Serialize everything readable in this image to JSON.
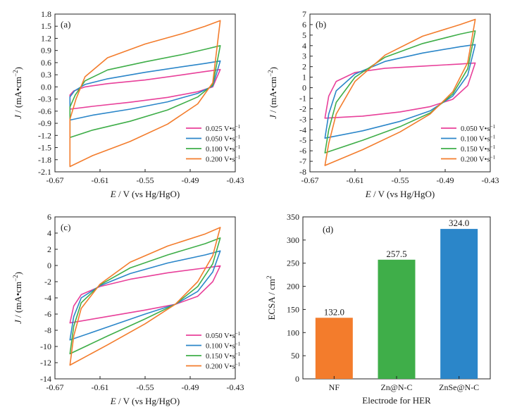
{
  "chart_data": [
    {
      "type": "line",
      "panel_label": "(a)",
      "xlabel_italic": "E",
      "xlabel": " / V (vs Hg/HgO)",
      "ylabel_italic": "J",
      "ylabel": " / (mA·cm",
      "ylabel_sup": "−2",
      "ylabel_end": ")",
      "xlim": [
        -0.67,
        -0.43
      ],
      "ylim": [
        -2.1,
        1.8
      ],
      "xticks": [
        "-0.67",
        "-0.61",
        "-0.55",
        "-0.49",
        "-0.43"
      ],
      "xtick_values": [
        -0.67,
        -0.61,
        -0.55,
        -0.49,
        -0.43
      ],
      "yticks": [
        "-2.1",
        "-1.8",
        "-1.5",
        "-1.2",
        "-0.9",
        "-0.6",
        "-0.3",
        "0.0",
        "0.3",
        "0.6",
        "0.9",
        "1.2",
        "1.5",
        "1.8"
      ],
      "ytick_values": [
        -2.1,
        -1.8,
        -1.5,
        -1.2,
        -0.9,
        -0.6,
        -0.3,
        0.0,
        0.3,
        0.6,
        0.9,
        1.2,
        1.5,
        1.8
      ],
      "legend_position": "lower-right",
      "x_min": -0.65,
      "x_max": -0.45,
      "series": [
        {
          "name": "0.025 V·s",
          "color": "#e8409a",
          "top": [
            [
              -0.65,
              -0.2
            ],
            [
              -0.645,
              -0.1
            ],
            [
              -0.63,
              0.0
            ],
            [
              -0.6,
              0.08
            ],
            [
              -0.55,
              0.17
            ],
            [
              -0.5,
              0.3
            ],
            [
              -0.47,
              0.38
            ],
            [
              -0.45,
              0.43
            ]
          ],
          "bottom": [
            [
              -0.65,
              -0.55
            ],
            [
              -0.62,
              -0.48
            ],
            [
              -0.57,
              -0.38
            ],
            [
              -0.52,
              -0.26
            ],
            [
              -0.48,
              -0.12
            ],
            [
              -0.46,
              0.0
            ],
            [
              -0.45,
              0.43
            ]
          ]
        },
        {
          "name": "0.050 V·s",
          "color": "#2b86c9",
          "top": [
            [
              -0.65,
              -0.25
            ],
            [
              -0.644,
              -0.1
            ],
            [
              -0.63,
              0.06
            ],
            [
              -0.6,
              0.2
            ],
            [
              -0.55,
              0.36
            ],
            [
              -0.5,
              0.5
            ],
            [
              -0.47,
              0.58
            ],
            [
              -0.45,
              0.64
            ]
          ],
          "bottom": [
            [
              -0.65,
              -0.82
            ],
            [
              -0.62,
              -0.7
            ],
            [
              -0.57,
              -0.55
            ],
            [
              -0.52,
              -0.37
            ],
            [
              -0.48,
              -0.16
            ],
            [
              -0.46,
              0.02
            ],
            [
              -0.45,
              0.64
            ]
          ]
        },
        {
          "name": "0.100 V·s",
          "color": "#3fae49",
          "top": [
            [
              -0.65,
              -0.5
            ],
            [
              -0.643,
              -0.2
            ],
            [
              -0.63,
              0.15
            ],
            [
              -0.6,
              0.42
            ],
            [
              -0.55,
              0.62
            ],
            [
              -0.5,
              0.8
            ],
            [
              -0.47,
              0.93
            ],
            [
              -0.45,
              1.02
            ]
          ],
          "bottom": [
            [
              -0.65,
              -1.25
            ],
            [
              -0.62,
              -1.07
            ],
            [
              -0.57,
              -0.85
            ],
            [
              -0.52,
              -0.57
            ],
            [
              -0.48,
              -0.25
            ],
            [
              -0.46,
              0.05
            ],
            [
              -0.45,
              1.02
            ]
          ]
        },
        {
          "name": "0.200 V·s",
          "color": "#f37c2c",
          "top": [
            [
              -0.65,
              -0.8
            ],
            [
              -0.642,
              -0.3
            ],
            [
              -0.63,
              0.25
            ],
            [
              -0.6,
              0.72
            ],
            [
              -0.55,
              1.06
            ],
            [
              -0.5,
              1.32
            ],
            [
              -0.47,
              1.5
            ],
            [
              -0.45,
              1.64
            ]
          ],
          "bottom": [
            [
              -0.65,
              -1.97
            ],
            [
              -0.62,
              -1.7
            ],
            [
              -0.57,
              -1.35
            ],
            [
              -0.52,
              -0.92
            ],
            [
              -0.48,
              -0.42
            ],
            [
              -0.46,
              0.1
            ],
            [
              -0.45,
              1.64
            ]
          ]
        }
      ]
    },
    {
      "type": "line",
      "panel_label": "(b)",
      "xlabel_italic": "E",
      "xlabel": " / V (vs Hg/HgO)",
      "ylabel_italic": "J",
      "ylabel": " / (mA·cm",
      "ylabel_sup": "−2",
      "ylabel_end": ")",
      "xlim": [
        -0.67,
        -0.43
      ],
      "ylim": [
        -8,
        7
      ],
      "xticks": [
        "-0.67",
        "-0.61",
        "-0.55",
        "-0.49",
        "-0.43"
      ],
      "xtick_values": [
        -0.67,
        -0.61,
        -0.55,
        -0.49,
        -0.43
      ],
      "yticks": [
        "-8",
        "-7",
        "-6",
        "-5",
        "-4",
        "-3",
        "-2",
        "-1",
        "0",
        "1",
        "2",
        "3",
        "4",
        "5",
        "6",
        "7"
      ],
      "ytick_values": [
        -8,
        -7,
        -6,
        -5,
        -4,
        -3,
        -2,
        -1,
        0,
        1,
        2,
        3,
        4,
        5,
        6,
        7
      ],
      "legend_position": "lower-right",
      "x_min": -0.65,
      "x_max": -0.45,
      "series": [
        {
          "name": "0.050 V·s",
          "color": "#e8409a",
          "top": [
            [
              -0.65,
              -2.9
            ],
            [
              -0.645,
              -0.8
            ],
            [
              -0.635,
              0.6
            ],
            [
              -0.61,
              1.45
            ],
            [
              -0.57,
              1.85
            ],
            [
              -0.52,
              2.05
            ],
            [
              -0.47,
              2.25
            ],
            [
              -0.45,
              2.35
            ]
          ],
          "bottom": [
            [
              -0.65,
              -2.9
            ],
            [
              -0.6,
              -2.7
            ],
            [
              -0.55,
              -2.3
            ],
            [
              -0.51,
              -1.8
            ],
            [
              -0.48,
              -1.1
            ],
            [
              -0.46,
              0.2
            ],
            [
              -0.45,
              2.35
            ]
          ]
        },
        {
          "name": "0.100 V·s",
          "color": "#2b86c9",
          "top": [
            [
              -0.65,
              -4.8
            ],
            [
              -0.645,
              -2.5
            ],
            [
              -0.635,
              -0.3
            ],
            [
              -0.61,
              1.3
            ],
            [
              -0.57,
              2.5
            ],
            [
              -0.52,
              3.3
            ],
            [
              -0.47,
              3.9
            ],
            [
              -0.45,
              4.1
            ]
          ],
          "bottom": [
            [
              -0.65,
              -4.8
            ],
            [
              -0.6,
              -4.1
            ],
            [
              -0.55,
              -3.2
            ],
            [
              -0.51,
              -2.2
            ],
            [
              -0.48,
              -0.8
            ],
            [
              -0.46,
              1.2
            ],
            [
              -0.45,
              4.1
            ]
          ]
        },
        {
          "name": "0.150 V·s",
          "color": "#3fae49",
          "top": [
            [
              -0.65,
              -6.2
            ],
            [
              -0.645,
              -4.0
            ],
            [
              -0.635,
              -1.4
            ],
            [
              -0.61,
              1.0
            ],
            [
              -0.57,
              2.9
            ],
            [
              -0.52,
              4.2
            ],
            [
              -0.47,
              5.1
            ],
            [
              -0.45,
              5.4
            ]
          ],
          "bottom": [
            [
              -0.65,
              -6.2
            ],
            [
              -0.6,
              -5.0
            ],
            [
              -0.55,
              -3.7
            ],
            [
              -0.51,
              -2.4
            ],
            [
              -0.48,
              -0.6
            ],
            [
              -0.46,
              1.8
            ],
            [
              -0.45,
              5.4
            ]
          ]
        },
        {
          "name": "0.200 V·s",
          "color": "#f37c2c",
          "top": [
            [
              -0.65,
              -7.4
            ],
            [
              -0.645,
              -5.3
            ],
            [
              -0.635,
              -2.5
            ],
            [
              -0.61,
              0.6
            ],
            [
              -0.57,
              3.1
            ],
            [
              -0.52,
              4.9
            ],
            [
              -0.47,
              6.0
            ],
            [
              -0.45,
              6.5
            ]
          ],
          "bottom": [
            [
              -0.65,
              -7.4
            ],
            [
              -0.6,
              -5.9
            ],
            [
              -0.55,
              -4.2
            ],
            [
              -0.51,
              -2.5
            ],
            [
              -0.48,
              -0.4
            ],
            [
              -0.46,
              2.4
            ],
            [
              -0.45,
              6.5
            ]
          ]
        }
      ]
    },
    {
      "type": "line",
      "panel_label": "(c)",
      "xlabel_italic": "E",
      "xlabel": " / V (vs Hg/HgO)",
      "ylabel_italic": "J",
      "ylabel": " / (mA·cm",
      "ylabel_sup": "−2",
      "ylabel_end": ")",
      "xlim": [
        -0.67,
        -0.43
      ],
      "ylim": [
        -14,
        6
      ],
      "xticks": [
        "-0.67",
        "-0.61",
        "-0.55",
        "-0.49",
        "-0.43"
      ],
      "xtick_values": [
        -0.67,
        -0.61,
        -0.55,
        -0.49,
        -0.43
      ],
      "yticks": [
        "-14",
        "-12",
        "-10",
        "-8",
        "-6",
        "-4",
        "-2",
        "0",
        "2",
        "4",
        "6"
      ],
      "ytick_values": [
        -14,
        -12,
        -10,
        -8,
        -6,
        -4,
        -2,
        0,
        2,
        4,
        6
      ],
      "legend_position": "lower-right",
      "x_min": -0.65,
      "x_max": -0.45,
      "series": [
        {
          "name": "0.050 V·s",
          "color": "#e8409a",
          "top": [
            [
              -0.65,
              -7.1
            ],
            [
              -0.645,
              -5.0
            ],
            [
              -0.635,
              -3.6
            ],
            [
              -0.61,
              -2.6
            ],
            [
              -0.57,
              -1.7
            ],
            [
              -0.52,
              -0.9
            ],
            [
              -0.47,
              -0.3
            ],
            [
              -0.45,
              -0.05
            ]
          ],
          "bottom": [
            [
              -0.65,
              -7.1
            ],
            [
              -0.6,
              -6.3
            ],
            [
              -0.55,
              -5.5
            ],
            [
              -0.51,
              -4.8
            ],
            [
              -0.48,
              -3.8
            ],
            [
              -0.46,
              -2.0
            ],
            [
              -0.45,
              -0.05
            ]
          ]
        },
        {
          "name": "0.100 V·s",
          "color": "#2b86c9",
          "top": [
            [
              -0.65,
              -9.2
            ],
            [
              -0.645,
              -6.3
            ],
            [
              -0.635,
              -4.0
            ],
            [
              -0.61,
              -2.5
            ],
            [
              -0.57,
              -1.0
            ],
            [
              -0.52,
              0.3
            ],
            [
              -0.47,
              1.3
            ],
            [
              -0.45,
              1.8
            ]
          ],
          "bottom": [
            [
              -0.65,
              -9.2
            ],
            [
              -0.6,
              -7.6
            ],
            [
              -0.55,
              -6.0
            ],
            [
              -0.51,
              -4.8
            ],
            [
              -0.48,
              -3.2
            ],
            [
              -0.46,
              -0.8
            ],
            [
              -0.45,
              1.8
            ]
          ]
        },
        {
          "name": "0.150 V·s",
          "color": "#3fae49",
          "top": [
            [
              -0.65,
              -10.9
            ],
            [
              -0.645,
              -7.5
            ],
            [
              -0.635,
              -4.6
            ],
            [
              -0.61,
              -2.4
            ],
            [
              -0.57,
              -0.3
            ],
            [
              -0.52,
              1.3
            ],
            [
              -0.47,
              2.7
            ],
            [
              -0.45,
              3.4
            ]
          ],
          "bottom": [
            [
              -0.65,
              -10.9
            ],
            [
              -0.6,
              -8.7
            ],
            [
              -0.55,
              -6.6
            ],
            [
              -0.51,
              -4.8
            ],
            [
              -0.48,
              -2.6
            ],
            [
              -0.46,
              0.2
            ],
            [
              -0.45,
              3.4
            ]
          ]
        },
        {
          "name": "0.200 V·s",
          "color": "#f37c2c",
          "top": [
            [
              -0.65,
              -12.3
            ],
            [
              -0.645,
              -8.7
            ],
            [
              -0.635,
              -5.3
            ],
            [
              -0.61,
              -2.3
            ],
            [
              -0.57,
              0.4
            ],
            [
              -0.52,
              2.4
            ],
            [
              -0.47,
              3.9
            ],
            [
              -0.45,
              4.7
            ]
          ],
          "bottom": [
            [
              -0.65,
              -12.3
            ],
            [
              -0.6,
              -9.8
            ],
            [
              -0.55,
              -7.2
            ],
            [
              -0.51,
              -4.8
            ],
            [
              -0.48,
              -2.0
            ],
            [
              -0.46,
              1.2
            ],
            [
              -0.45,
              4.7
            ]
          ]
        }
      ]
    },
    {
      "type": "bar",
      "panel_label": "(d)",
      "categories": [
        "NF",
        "Zn@N-C",
        "ZnSe@N-C"
      ],
      "values": [
        132.0,
        257.5,
        324.0
      ],
      "value_labels": [
        "132.0",
        "257.5",
        "324.0"
      ],
      "colors": [
        "#f37c2c",
        "#3fae49",
        "#2b86c9"
      ],
      "xlabel": "Electrode for HER",
      "ylabel": "ECSA / cm",
      "ylabel_sup": "2",
      "ylim": [
        0,
        350
      ],
      "yticks": [
        "0",
        "50",
        "100",
        "150",
        "200",
        "250",
        "300",
        "350"
      ],
      "ytick_values": [
        0,
        50,
        100,
        150,
        200,
        250,
        300,
        350
      ]
    }
  ],
  "legend_unit_sup": "−1"
}
